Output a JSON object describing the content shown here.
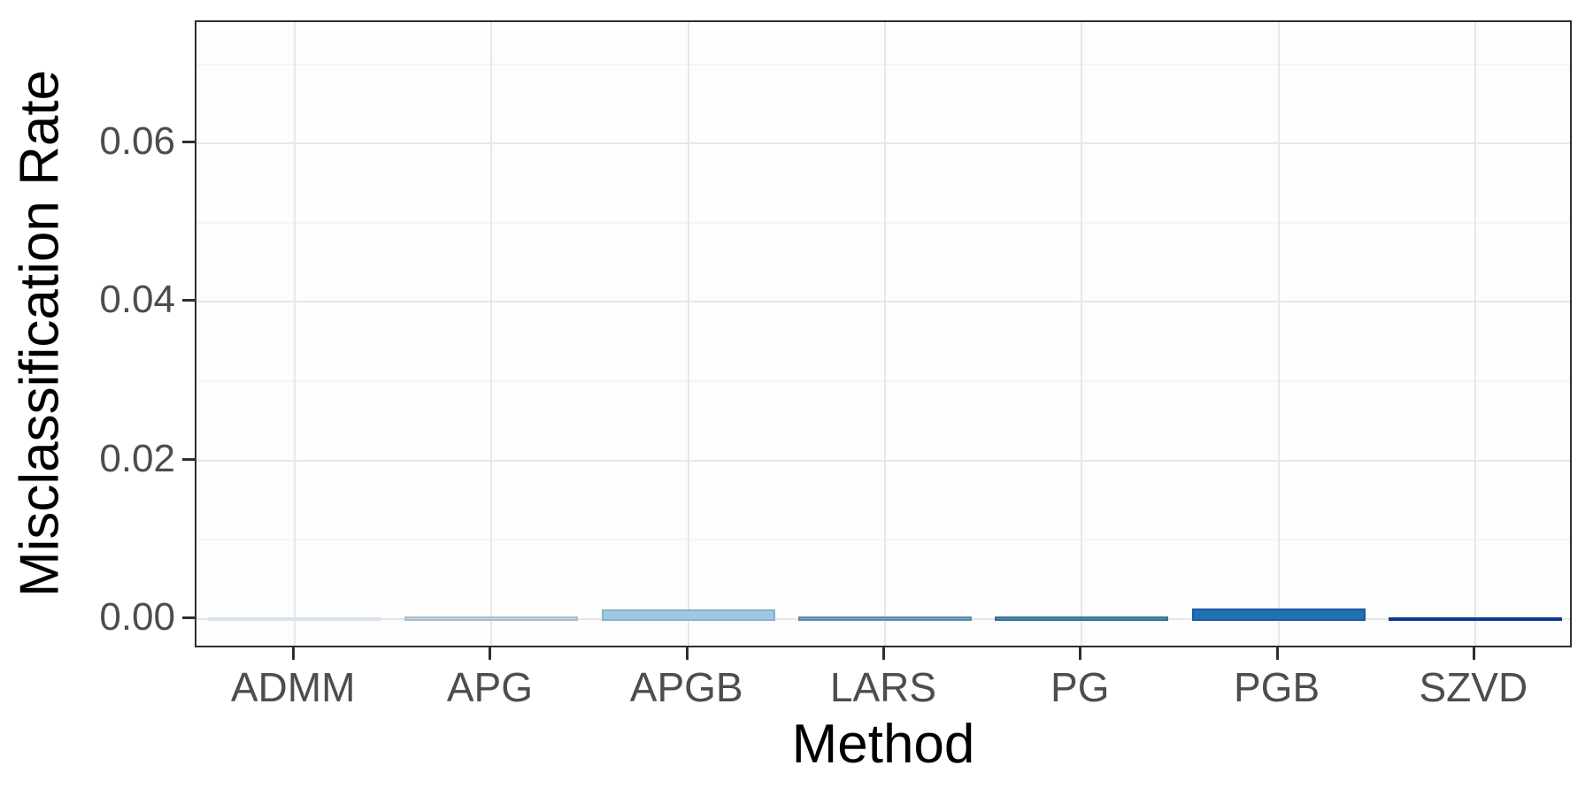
{
  "figure": {
    "title": "",
    "xlabel": "Method",
    "ylabel": "Misclassification Rate"
  },
  "chart_data": {
    "type": "boxplot",
    "title": "",
    "xlabel": "Method",
    "ylabel": "Misclassification Rate",
    "categories": [
      "ADMM",
      "APG",
      "APGB",
      "LARS",
      "PG",
      "PGB",
      "SZVD"
    ],
    "series": [
      {
        "name": "ADMM",
        "median": 0.0,
        "q1": 0.0,
        "q3": 0.0002,
        "whisker_low": 0.0,
        "whisker_high": 0.0002
      },
      {
        "name": "APG",
        "median": 0.0,
        "q1": 0.0,
        "q3": 0.0003,
        "whisker_low": 0.0,
        "whisker_high": 0.0003
      },
      {
        "name": "APGB",
        "median": 0.0,
        "q1": 0.0,
        "q3": 0.0012,
        "whisker_low": 0.0,
        "whisker_high": 0.0012
      },
      {
        "name": "LARS",
        "median": 0.0,
        "q1": 0.0,
        "q3": 0.0003,
        "whisker_low": 0.0,
        "whisker_high": 0.0003
      },
      {
        "name": "PG",
        "median": 0.0,
        "q1": 0.0,
        "q3": 0.0003,
        "whisker_low": 0.0,
        "whisker_high": 0.0003
      },
      {
        "name": "PGB",
        "median": 0.0,
        "q1": 0.0,
        "q3": 0.0013,
        "whisker_low": 0.0,
        "whisker_high": 0.0013
      },
      {
        "name": "SZVD",
        "median": 0.0,
        "q1": 0.0,
        "q3": 0.0002,
        "whisker_low": 0.0,
        "whisker_high": 0.0002
      }
    ],
    "ylim": [
      -0.0038,
      0.0753
    ],
    "yticks": [
      0.0,
      0.02,
      0.04,
      0.06
    ],
    "ytick_labels": [
      "0.00",
      "0.02",
      "0.04",
      "0.06"
    ],
    "minor_grid_values": [
      0.01,
      0.03,
      0.05,
      0.07
    ],
    "grid": "major and minor horizontal, major vertical at category centers",
    "legend": "none",
    "palette_name": "Blues sequential (7-class)",
    "fill_colors": [
      "#eff3ff",
      "#c6dbef",
      "#9ecae1",
      "#6baed6",
      "#4292c6",
      "#2171b5",
      "#084594"
    ],
    "edge_colors": [
      "#d9e2ec",
      "#a9bcc9",
      "#87b1cc",
      "#5d8cab",
      "#3c7192",
      "#1b5c9e",
      "#123a8f"
    ],
    "tick_label_color": "#4d4d4d",
    "axis_title_color": "#000000",
    "panel_border_color": "#2e2e2e",
    "major_grid_color": "#e7e7e7",
    "minor_grid_color": "#f4f4f4",
    "background_color": "#ffffff"
  }
}
